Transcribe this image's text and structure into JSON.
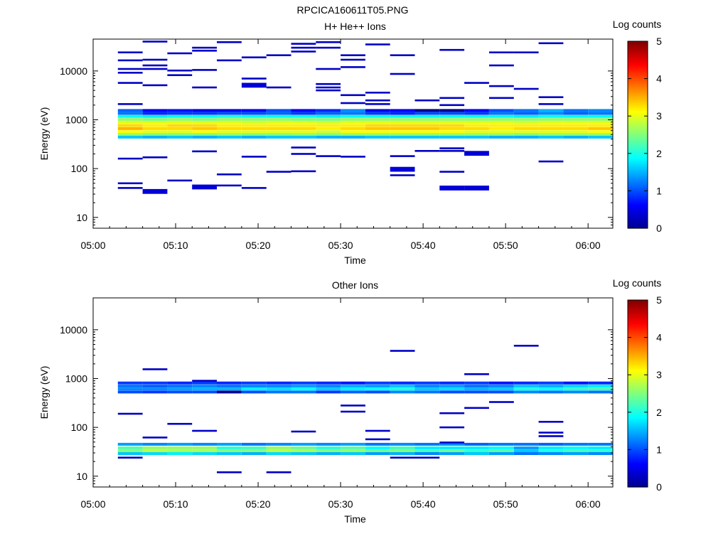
{
  "figure_title": "RPCICA160611T05.PNG",
  "colors": {
    "colormap": [
      "#00008f",
      "#0000ff",
      "#007fff",
      "#00ffff",
      "#7fff7f",
      "#ffff00",
      "#ff7f00",
      "#ff0000",
      "#800000"
    ]
  },
  "chart_data": [
    {
      "type": "heatmap",
      "title": "H+ He++ Ions",
      "xlabel": "Time",
      "ylabel": "Energy (eV)",
      "x_ticks": [
        "05:00",
        "05:10",
        "05:20",
        "05:30",
        "05:40",
        "05:50",
        "06:00"
      ],
      "x_range_minutes": [
        0,
        63
      ],
      "y_ticks": [
        "10",
        "100",
        "1000",
        "10000"
      ],
      "y_scale": "log",
      "ylim": [
        6,
        45000
      ],
      "colorbar": {
        "label": "Log counts",
        "ticks": [
          "0",
          "1",
          "2",
          "3",
          "4",
          "5"
        ],
        "range": [
          0,
          5
        ]
      },
      "time_bins_minutes": [
        3,
        6,
        9,
        12,
        15,
        18,
        21,
        24,
        27,
        30,
        33,
        36,
        39,
        42,
        45,
        48,
        51,
        54,
        57,
        60
      ],
      "main_band": {
        "energies_eV": [
          1550,
          1350,
          1170,
          1010,
          880,
          760,
          660,
          570,
          500,
          440
        ],
        "values_by_bin": [
          [
            1.1,
            1.2,
            1.9,
            2.6,
            3.0,
            3.3,
            3.5,
            3.1,
            2.6,
            1.6
          ],
          [
            0.6,
            0.8,
            1.8,
            2.5,
            3.0,
            3.2,
            3.3,
            3.0,
            2.5,
            1.5
          ],
          [
            0.7,
            0.9,
            1.9,
            2.6,
            3.0,
            3.3,
            3.3,
            3.0,
            2.5,
            1.6
          ],
          [
            0.5,
            0.9,
            1.9,
            2.5,
            3.0,
            3.3,
            3.4,
            3.1,
            2.5,
            1.5
          ],
          [
            0.5,
            1.0,
            2.0,
            2.6,
            3.0,
            3.2,
            3.3,
            3.0,
            2.6,
            1.6
          ],
          [
            0.6,
            1.0,
            1.9,
            2.6,
            2.9,
            3.2,
            3.3,
            3.0,
            2.5,
            1.5
          ],
          [
            1.0,
            1.1,
            1.9,
            2.6,
            3.0,
            3.2,
            3.3,
            3.0,
            2.5,
            1.6
          ],
          [
            0.6,
            0.9,
            1.9,
            2.5,
            3.0,
            3.2,
            3.3,
            3.0,
            2.6,
            1.6
          ],
          [
            0.8,
            1.1,
            1.8,
            2.5,
            2.9,
            3.2,
            3.2,
            2.9,
            2.5,
            1.5
          ],
          [
            1.3,
            1.2,
            1.9,
            2.6,
            3.0,
            3.2,
            3.3,
            3.1,
            2.6,
            1.5
          ],
          [
            0.5,
            0.9,
            1.9,
            2.6,
            3.0,
            3.3,
            3.4,
            3.1,
            2.6,
            1.6
          ],
          [
            0.6,
            0.8,
            1.9,
            2.6,
            3.0,
            3.3,
            3.4,
            3.1,
            2.6,
            1.6
          ],
          [
            0.0,
            1.0,
            1.9,
            2.6,
            3.0,
            3.3,
            3.4,
            3.1,
            2.6,
            1.6
          ],
          [
            0.0,
            1.0,
            1.9,
            2.6,
            3.0,
            3.3,
            3.3,
            3.1,
            2.6,
            1.6
          ],
          [
            0.6,
            0.9,
            1.9,
            2.6,
            3.0,
            3.2,
            3.3,
            3.0,
            2.6,
            1.6
          ],
          [
            1.0,
            1.2,
            1.9,
            2.6,
            3.0,
            3.2,
            3.2,
            3.0,
            2.6,
            1.5
          ],
          [
            1.2,
            1.1,
            1.8,
            2.6,
            2.9,
            3.2,
            3.3,
            3.0,
            2.5,
            1.5
          ],
          [
            1.5,
            1.3,
            1.9,
            2.6,
            3.0,
            3.2,
            3.3,
            3.0,
            2.6,
            1.6
          ],
          [
            1.2,
            1.1,
            1.9,
            2.6,
            3.0,
            3.2,
            3.3,
            3.0,
            2.6,
            1.5
          ],
          [
            1.3,
            1.2,
            1.9,
            2.6,
            3.0,
            3.2,
            3.4,
            3.1,
            2.6,
            1.6
          ]
        ]
      },
      "sparse_counts": [
        [
          3,
          24000,
          0.3
        ],
        [
          3,
          16500,
          0.3
        ],
        [
          3,
          11000,
          0.3
        ],
        [
          3,
          9200,
          0.3
        ],
        [
          3,
          5700,
          0.3
        ],
        [
          3,
          2100,
          0.3
        ],
        [
          3,
          160,
          0.3
        ],
        [
          3,
          50,
          0.3
        ],
        [
          3,
          40,
          0.3
        ],
        [
          6,
          40000,
          0.3
        ],
        [
          6,
          17000,
          0.3
        ],
        [
          6,
          13000,
          0.3
        ],
        [
          6,
          11000,
          0.3
        ],
        [
          6,
          5100,
          0.3
        ],
        [
          6,
          170,
          0.3
        ],
        [
          6,
          34,
          0.4
        ],
        [
          9,
          23000,
          0.3
        ],
        [
          9,
          10200,
          0.3
        ],
        [
          9,
          8200,
          0.3
        ],
        [
          9,
          57,
          0.3
        ],
        [
          12,
          30000,
          0.3
        ],
        [
          12,
          26000,
          0.3
        ],
        [
          12,
          10500,
          0.3
        ],
        [
          12,
          4600,
          0.3
        ],
        [
          12,
          225,
          0.3
        ],
        [
          12,
          42,
          0.4
        ],
        [
          15,
          39000,
          0.3
        ],
        [
          15,
          16500,
          0.3
        ],
        [
          15,
          76,
          0.3
        ],
        [
          15,
          45,
          0.3
        ],
        [
          18,
          19000,
          0.3
        ],
        [
          18,
          7000,
          0.3
        ],
        [
          18,
          5100,
          0.4
        ],
        [
          18,
          175,
          0.3
        ],
        [
          18,
          40,
          0.3
        ],
        [
          21,
          21000,
          0.3
        ],
        [
          21,
          4600,
          0.3
        ],
        [
          21,
          86,
          0.3
        ],
        [
          24,
          36000,
          0.3
        ],
        [
          24,
          30000,
          0.3
        ],
        [
          24,
          25000,
          0.3
        ],
        [
          24,
          270,
          0.3
        ],
        [
          24,
          200,
          0.3
        ],
        [
          24,
          88,
          0.3
        ],
        [
          27,
          39000,
          0.3
        ],
        [
          27,
          30000,
          0.3
        ],
        [
          27,
          11000,
          0.3
        ],
        [
          27,
          5400,
          0.3
        ],
        [
          27,
          4600,
          0.3
        ],
        [
          27,
          4000,
          0.3
        ],
        [
          27,
          180,
          0.3
        ],
        [
          30,
          21000,
          0.3
        ],
        [
          30,
          17000,
          0.3
        ],
        [
          30,
          12000,
          0.3
        ],
        [
          30,
          3200,
          0.3
        ],
        [
          30,
          2200,
          0.3
        ],
        [
          30,
          175,
          0.3
        ],
        [
          33,
          35000,
          0.3
        ],
        [
          33,
          3600,
          0.3
        ],
        [
          33,
          2500,
          0.3
        ],
        [
          33,
          2100,
          0.3
        ],
        [
          36,
          21000,
          0.3
        ],
        [
          36,
          8700,
          0.3
        ],
        [
          36,
          180,
          0.3
        ],
        [
          36,
          97,
          0.4
        ],
        [
          36,
          73,
          0.3
        ],
        [
          39,
          2500,
          0.3
        ],
        [
          39,
          230,
          0.3
        ],
        [
          42,
          27000,
          0.3
        ],
        [
          42,
          2800,
          0.3
        ],
        [
          42,
          2000,
          0.3
        ],
        [
          42,
          260,
          0.3
        ],
        [
          42,
          230,
          0.3
        ],
        [
          42,
          86,
          0.3
        ],
        [
          42,
          40,
          0.4
        ],
        [
          45,
          5700,
          0.3
        ],
        [
          45,
          205,
          0.4
        ],
        [
          45,
          40,
          0.4
        ],
        [
          48,
          24000,
          0.3
        ],
        [
          48,
          13000,
          0.3
        ],
        [
          48,
          4900,
          0.3
        ],
        [
          48,
          2800,
          0.3
        ],
        [
          51,
          24000,
          0.3
        ],
        [
          51,
          4300,
          0.3
        ],
        [
          54,
          37000,
          0.3
        ],
        [
          54,
          2900,
          0.3
        ],
        [
          54,
          2100,
          0.3
        ],
        [
          54,
          140,
          0.3
        ]
      ]
    },
    {
      "type": "heatmap",
      "title": "Other Ions",
      "xlabel": "Time",
      "ylabel": "Energy (eV)",
      "x_ticks": [
        "05:00",
        "05:10",
        "05:20",
        "05:30",
        "05:40",
        "05:50",
        "06:00"
      ],
      "x_range_minutes": [
        0,
        63
      ],
      "y_ticks": [
        "10",
        "100",
        "1000",
        "10000"
      ],
      "y_scale": "log",
      "ylim": [
        6,
        45000
      ],
      "colorbar": {
        "label": "Log counts",
        "ticks": [
          "0",
          "1",
          "2",
          "3",
          "4",
          "5"
        ],
        "range": [
          0,
          5
        ]
      },
      "time_bins_minutes": [
        3,
        6,
        9,
        12,
        15,
        18,
        21,
        24,
        27,
        30,
        33,
        36,
        39,
        42,
        45,
        48,
        51,
        54,
        57,
        60
      ],
      "high_band": {
        "energies_eV": [
          810,
          700,
          610,
          530
        ],
        "values_by_bin": [
          [
            0.9,
            1.2,
            1.3,
            1.0
          ],
          [
            0.9,
            1.1,
            1.3,
            0.9
          ],
          [
            0.8,
            1.2,
            1.4,
            1.0
          ],
          [
            0.9,
            1.3,
            1.5,
            1.0
          ],
          [
            0.8,
            1.2,
            1.5,
            0.0
          ],
          [
            0.9,
            1.3,
            1.8,
            1.0
          ],
          [
            0.8,
            1.3,
            1.7,
            1.2
          ],
          [
            0.9,
            1.4,
            1.9,
            1.2
          ],
          [
            0.8,
            1.3,
            1.6,
            0.9
          ],
          [
            0.7,
            1.5,
            1.8,
            1.1
          ],
          [
            0.9,
            1.4,
            1.9,
            1.0
          ],
          [
            0.8,
            1.6,
            2.0,
            1.3
          ],
          [
            0.9,
            1.3,
            1.6,
            1.2
          ],
          [
            0.8,
            1.4,
            1.7,
            1.0
          ],
          [
            0.9,
            1.2,
            1.5,
            1.0
          ],
          [
            0.7,
            1.3,
            1.6,
            1.0
          ],
          [
            0.8,
            1.6,
            2.0,
            1.3
          ],
          [
            0.9,
            1.5,
            1.9,
            1.2
          ],
          [
            0.7,
            1.7,
            2.1,
            1.3
          ],
          [
            0.8,
            1.8,
            2.2,
            1.2
          ]
        ]
      },
      "low_band": {
        "energies_eV": [
          45,
          38,
          33,
          29
        ],
        "values_by_bin": [
          [
            1.4,
            2.3,
            2.5,
            1.6
          ],
          [
            1.3,
            2.6,
            2.8,
            1.7
          ],
          [
            1.4,
            2.6,
            2.7,
            1.8
          ],
          [
            1.3,
            2.6,
            2.7,
            1.7
          ],
          [
            1.4,
            2.1,
            2.5,
            1.6
          ],
          [
            1.2,
            2.2,
            2.5,
            1.5
          ],
          [
            1.3,
            2.6,
            2.8,
            1.7
          ],
          [
            1.4,
            2.4,
            2.7,
            1.6
          ],
          [
            1.3,
            2.1,
            2.5,
            1.5
          ],
          [
            1.4,
            2.3,
            2.6,
            1.6
          ],
          [
            1.2,
            1.9,
            2.4,
            1.4
          ],
          [
            1.3,
            2.2,
            2.5,
            1.5
          ],
          [
            1.2,
            1.8,
            2.2,
            1.3
          ],
          [
            1.3,
            1.8,
            2.4,
            1.4
          ],
          [
            1.1,
            1.8,
            2.1,
            1.6
          ],
          [
            1.2,
            1.9,
            2.3,
            1.4
          ],
          [
            1.2,
            1.4,
            1.6,
            1.2
          ],
          [
            1.1,
            1.8,
            2.0,
            1.3
          ],
          [
            1.2,
            1.9,
            2.2,
            1.4
          ],
          [
            1.2,
            1.8,
            2.1,
            1.3
          ]
        ]
      },
      "sparse_counts": [
        [
          3,
          190,
          0.3
        ],
        [
          3,
          24,
          0.3
        ],
        [
          6,
          62,
          0.3
        ],
        [
          6,
          1550,
          0.3
        ],
        [
          9,
          118,
          0.3
        ],
        [
          12,
          85,
          0.3
        ],
        [
          12,
          900,
          0.3
        ],
        [
          15,
          12,
          0.3
        ],
        [
          21,
          12,
          0.3
        ],
        [
          24,
          82,
          0.3
        ],
        [
          30,
          280,
          0.3
        ],
        [
          30,
          210,
          0.3
        ],
        [
          33,
          85,
          0.3
        ],
        [
          33,
          57,
          0.3
        ],
        [
          36,
          3700,
          0.3
        ],
        [
          36,
          24,
          0.3
        ],
        [
          39,
          24,
          0.3
        ],
        [
          42,
          195,
          0.3
        ],
        [
          42,
          100,
          0.3
        ],
        [
          42,
          49,
          0.3
        ],
        [
          45,
          1230,
          0.3
        ],
        [
          45,
          250,
          0.3
        ],
        [
          48,
          330,
          0.3
        ],
        [
          51,
          4700,
          0.3
        ],
        [
          54,
          130,
          0.3
        ],
        [
          54,
          78,
          0.3
        ],
        [
          54,
          66,
          0.3
        ]
      ]
    }
  ]
}
